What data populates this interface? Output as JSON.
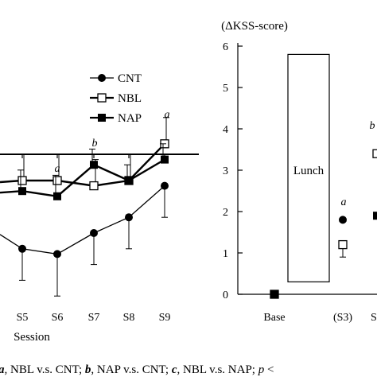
{
  "chart_data": [
    {
      "type": "line",
      "xlabel": "Session",
      "categories": [
        "S5",
        "S6",
        "S7",
        "S8",
        "S9"
      ],
      "legend": {
        "placement": "top-right",
        "entries": [
          "CNT",
          "NBL",
          "NAP"
        ]
      },
      "series": [
        {
          "name": "CNT",
          "marker": "filled-circle",
          "values": [
            -1.8,
            -1.9,
            -1.5,
            -1.2,
            -0.6
          ],
          "error": [
            0.6,
            0.8,
            0.6,
            0.6,
            0.6
          ]
        },
        {
          "name": "NBL",
          "marker": "open-square",
          "values": [
            -0.5,
            -0.5,
            -0.6,
            -0.5,
            0.2
          ],
          "error": [
            0.5,
            0.5,
            0.5,
            0.5,
            0.5
          ]
        },
        {
          "name": "NAP",
          "marker": "filled-square",
          "values": [
            -0.7,
            -0.8,
            -0.2,
            -0.5,
            -0.1
          ],
          "error": [
            0.4,
            0.4,
            0.3,
            0.3,
            0.3
          ]
        }
      ],
      "annotations": [
        {
          "category": "S6",
          "text": "a"
        },
        {
          "category": "S7",
          "text": "b"
        },
        {
          "category": "S9",
          "text": "a"
        }
      ],
      "grid": false
    },
    {
      "type": "scatter",
      "ylabel": "(ΔKSS-score)",
      "categories": [
        "Base",
        "(S3)",
        "S"
      ],
      "ylim": [
        0,
        6
      ],
      "yticks": [
        "0",
        "1",
        "2",
        "3",
        "4",
        "5",
        "6"
      ],
      "lunch_box": {
        "label": "Lunch",
        "from": 0.3,
        "to": 5.8
      },
      "series": [
        {
          "name": "CNT",
          "marker": "filled-circle",
          "points": [
            {
              "category": "Base",
              "value": 0
            },
            {
              "category": "(S3)",
              "value": 1.8
            }
          ]
        },
        {
          "name": "NBL",
          "marker": "open-square",
          "points": [
            {
              "category": "Base",
              "value": 0
            },
            {
              "category": "(S3)",
              "value": 1.2,
              "error": 0.3
            },
            {
              "category": "S",
              "value": 3.4
            }
          ]
        },
        {
          "name": "NAP",
          "marker": "filled-square",
          "points": [
            {
              "category": "Base",
              "value": 0
            },
            {
              "category": "S",
              "value": 1.9
            }
          ]
        }
      ],
      "annotations": [
        {
          "category": "(S3)",
          "text": "a"
        },
        {
          "category": "S",
          "text": "b"
        }
      ],
      "grid": false
    }
  ],
  "caption": {
    "parts": [
      {
        "text": "a",
        "style": "bi"
      },
      {
        "text": ", NBL v.s. CNT; ",
        "style": "n"
      },
      {
        "text": "b",
        "style": "bi"
      },
      {
        "text": ", NAP v.s. CNT; ",
        "style": "n"
      },
      {
        "text": "c",
        "style": "bi"
      },
      {
        "text": ", NBL v.s. NAP; ",
        "style": "n"
      },
      {
        "text": "p",
        "style": "i"
      },
      {
        "text": " <",
        "style": "n"
      }
    ]
  }
}
